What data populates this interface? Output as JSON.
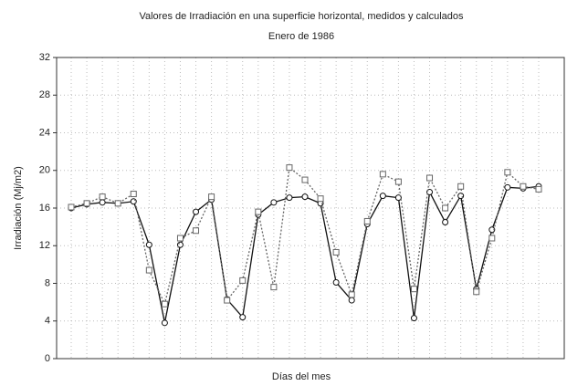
{
  "chart_data": {
    "type": "line",
    "title": "Valores de Irradiación en una superficie horizontal, medidos y calculados",
    "subtitle": "Enero de 1986",
    "ylabel": "Irradiación (Mj/m2)",
    "xlabel": "Días del mes",
    "categories": [
      null,
      null,
      null,
      null,
      null,
      null,
      null,
      null,
      null,
      null,
      null,
      null,
      null,
      null,
      null,
      null,
      null,
      null,
      null,
      null,
      null,
      null,
      null,
      null,
      null,
      null,
      null,
      null,
      null,
      null,
      null
    ],
    "series": [
      {
        "color": "#111111",
        "style": "solid",
        "marker": "circle",
        "values": [
          16,
          16.4,
          16.6,
          16.5,
          16.7,
          12.1,
          3.8,
          12.1,
          15.6,
          16.9,
          6.3,
          4.4,
          15.3,
          16.6,
          17.1,
          17.2,
          16.5,
          8.1,
          6.2,
          14.3,
          17.3,
          17.1,
          4.3,
          17.7,
          14.5,
          17.3,
          7.4,
          13.7,
          18.2,
          18.1,
          18.3
        ]
      },
      {
        "color": "#666666",
        "style": "dotted",
        "marker": "square",
        "values": [
          16.1,
          16.5,
          17.2,
          16.5,
          17.5,
          9.4,
          5.8,
          12.8,
          13.6,
          17.2,
          6.2,
          8.3,
          15.6,
          7.6,
          20.3,
          19.0,
          17.0,
          11.3,
          6.8,
          14.6,
          19.6,
          18.8,
          7.4,
          19.2,
          16.0,
          18.3,
          7.1,
          12.8,
          19.8,
          18.3,
          18.0
        ]
      }
    ],
    "ylim": [
      0,
      32
    ],
    "yticks": [
      0,
      4,
      8,
      12,
      16,
      20,
      24,
      28,
      32
    ],
    "grid": true
  }
}
